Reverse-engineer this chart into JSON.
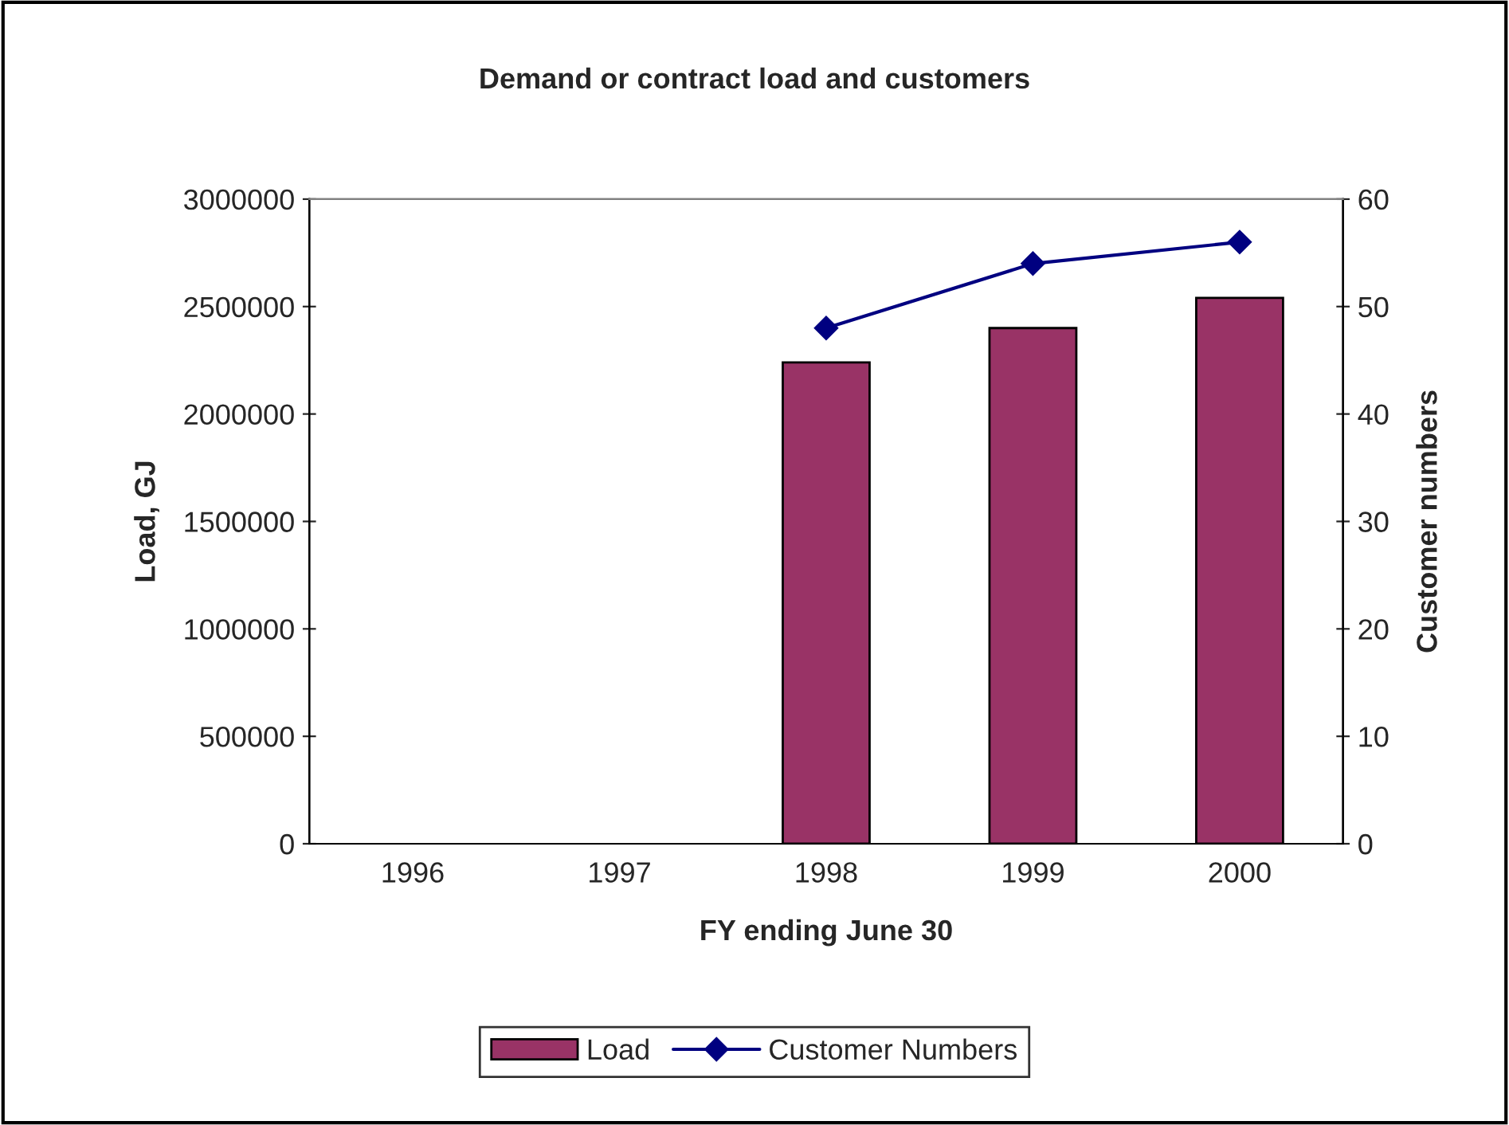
{
  "chart_data": {
    "type": "bar",
    "title": "Demand or contract load and customers",
    "xlabel": "FY ending June 30",
    "ylabel": "Load, GJ",
    "y2label": "Customer numbers",
    "categories": [
      "1996",
      "1997",
      "1998",
      "1999",
      "2000"
    ],
    "series": [
      {
        "name": "Load",
        "color": "#993366",
        "values": [
          null,
          null,
          2240000,
          2400000,
          2540000
        ]
      },
      {
        "name": "Customer Numbers",
        "type": "line",
        "axis": "y2",
        "color": "#000080",
        "marker": "diamond",
        "values": [
          null,
          null,
          48,
          54,
          56
        ]
      }
    ],
    "ylim": [
      0,
      3000000
    ],
    "yticks": [
      0,
      500000,
      1000000,
      1500000,
      2000000,
      2500000,
      3000000
    ],
    "y2lim": [
      0,
      60
    ],
    "y2ticks": [
      0,
      10,
      20,
      30,
      40,
      50,
      60
    ],
    "grid": false,
    "legend": "bottom"
  }
}
